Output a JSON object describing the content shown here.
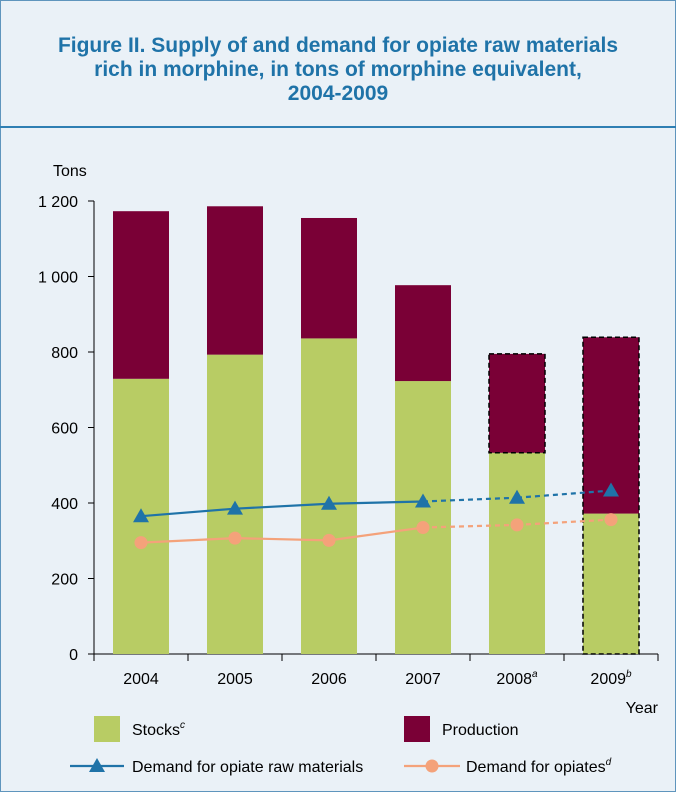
{
  "title_line1": "Figure II.   Supply of and demand for opiate raw materials",
  "title_line2": "rich in morphine, in tons of morphine equivalent,",
  "title_line3": "2004-2009",
  "chart_data": {
    "type": "bar",
    "stacked": true,
    "ylabel": "Tons",
    "xlabel": "Year",
    "ylim": [
      0,
      1200
    ],
    "yticks": [
      {
        "value": 0,
        "label": "0"
      },
      {
        "value": 200,
        "label": "200"
      },
      {
        "value": 400,
        "label": "400"
      },
      {
        "value": 600,
        "label": "600"
      },
      {
        "value": 800,
        "label": "800"
      },
      {
        "value": 1000,
        "label": "1 000"
      },
      {
        "value": 1200,
        "label": "1 200"
      }
    ],
    "categories": [
      {
        "label": "2004",
        "sup": ""
      },
      {
        "label": "2005",
        "sup": ""
      },
      {
        "label": "2006",
        "sup": ""
      },
      {
        "label": "2007",
        "sup": ""
      },
      {
        "label": "2008",
        "sup": "a"
      },
      {
        "label": "2009",
        "sup": "b"
      }
    ],
    "estimated_categories": [
      4,
      5
    ],
    "series": [
      {
        "name": "Stocks",
        "sup": "c",
        "kind": "bar",
        "color": "#b8cc64",
        "values": [
          729,
          793,
          836,
          723,
          533,
          372
        ]
      },
      {
        "name": "Production",
        "kind": "bar",
        "color": "#7a0036",
        "values": [
          444,
          393,
          319,
          254,
          262,
          467
        ]
      },
      {
        "name": "Demand for opiate raw materials",
        "kind": "line",
        "color": "#1f73a8",
        "marker": "triangle",
        "values": [
          365,
          385,
          398,
          404,
          414,
          433
        ]
      },
      {
        "name": "Demand for opiates",
        "sup": "d",
        "kind": "line",
        "color": "#f4a27a",
        "marker": "circle",
        "values": [
          295,
          307,
          301,
          335,
          342,
          356
        ]
      }
    ]
  }
}
